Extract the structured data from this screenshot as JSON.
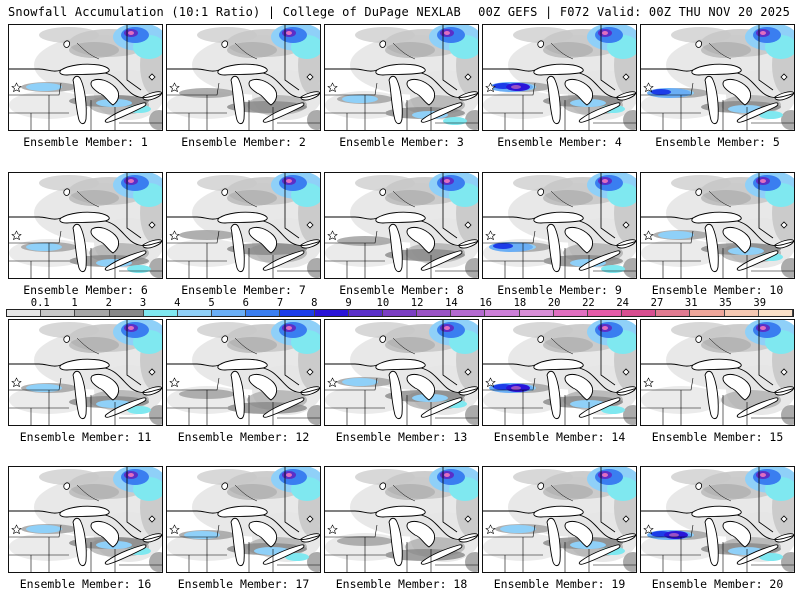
{
  "header": {
    "left_title": "Snowfall Accumulation (10:1 Ratio) | College of DuPage NEXLAB",
    "right_title": "00Z GEFS | F072 Valid: 00Z THU NOV 20 2025"
  },
  "colorbar": {
    "labels": [
      "0.1",
      "1",
      "2",
      "3",
      "4",
      "5",
      "6",
      "7",
      "8",
      "9",
      "10",
      "12",
      "14",
      "16",
      "18",
      "20",
      "22",
      "24",
      "27",
      "31",
      "35",
      "39"
    ],
    "colors": [
      "#e6e6e6",
      "#c8c8c8",
      "#a6a6a6",
      "#888888",
      "#7fe8f0",
      "#8fd0f8",
      "#6aaef5",
      "#3a7ef0",
      "#1c3ce8",
      "#2a14d8",
      "#5a2fc8",
      "#7b3ec2",
      "#9a52c4",
      "#b46ad0",
      "#cc7ed8",
      "#d98ed8",
      "#e06ec0",
      "#e55aa8",
      "#d84e90",
      "#e07a90",
      "#eea69a",
      "#f5c8b2",
      "#fae0c8"
    ]
  },
  "panels": [
    {
      "label": "Ensemble Member: 1",
      "snow_band": 2
    },
    {
      "label": "Ensemble Member: 2",
      "snow_band": 1
    },
    {
      "label": "Ensemble Member: 3",
      "snow_band": 2
    },
    {
      "label": "Ensemble Member: 4",
      "snow_band": 4
    },
    {
      "label": "Ensemble Member: 5",
      "snow_band": 3
    },
    {
      "label": "Ensemble Member: 6",
      "snow_band": 2
    },
    {
      "label": "Ensemble Member: 7",
      "snow_band": 1
    },
    {
      "label": "Ensemble Member: 8",
      "snow_band": 1
    },
    {
      "label": "Ensemble Member: 9",
      "snow_band": 3
    },
    {
      "label": "Ensemble Member: 10",
      "snow_band": 2
    },
    {
      "label": "Ensemble Member: 11",
      "snow_band": 2
    },
    {
      "label": "Ensemble Member: 12",
      "snow_band": 1
    },
    {
      "label": "Ensemble Member: 13",
      "snow_band": 2
    },
    {
      "label": "Ensemble Member: 14",
      "snow_band": 4
    },
    {
      "label": "Ensemble Member: 15",
      "snow_band": 0
    },
    {
      "label": "Ensemble Member: 16",
      "snow_band": 2
    },
    {
      "label": "Ensemble Member: 17",
      "snow_band": 2
    },
    {
      "label": "Ensemble Member: 18",
      "snow_band": 1
    },
    {
      "label": "Ensemble Member: 19",
      "snow_band": 2
    },
    {
      "label": "Ensemble Member: 20",
      "snow_band": 4
    }
  ]
}
